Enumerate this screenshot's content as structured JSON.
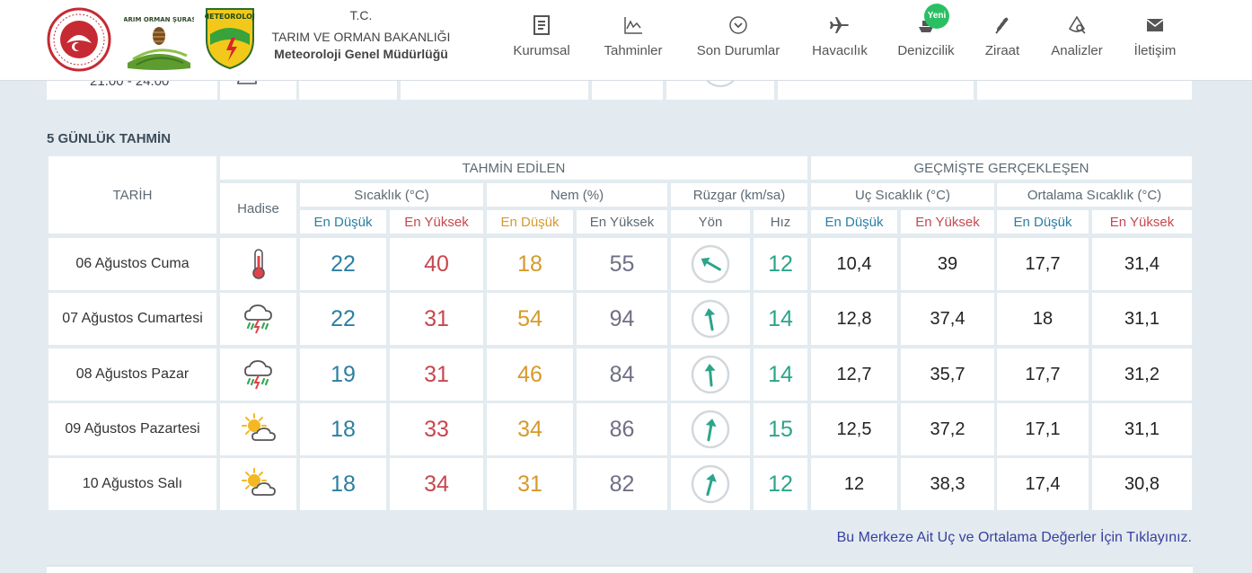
{
  "header": {
    "org_line1": "T.C.",
    "org_line2": "TARIM VE ORMAN BAKANLIĞI",
    "org_line3": "Meteoroloji Genel Müdürlüğü",
    "nav": [
      {
        "label": "Kurumsal",
        "icon": "document-icon"
      },
      {
        "label": "Tahminler",
        "icon": "chart-icon"
      },
      {
        "label": "Son Durumlar",
        "icon": "chevron-circle-icon"
      },
      {
        "label": "Havacılık",
        "icon": "airplane-icon"
      },
      {
        "label": "Denizcilik",
        "icon": "ship-icon",
        "badge": "Yeni"
      },
      {
        "label": "Ziraat",
        "icon": "wheat-icon"
      },
      {
        "label": "Analizler",
        "icon": "analysis-icon"
      },
      {
        "label": "İletişim",
        "icon": "mail-icon"
      }
    ]
  },
  "prev": {
    "time": "21.00 - 24.00"
  },
  "section_title": "5 GÜNLÜK TAHMİN",
  "table": {
    "h_date": "TARİH",
    "h_forecast": "TAHMİN EDİLEN",
    "h_past": "GEÇMİŞTE GERÇEKLEŞEN",
    "h_event": "Hadise",
    "h_temp": "Sıcaklık (°C)",
    "h_hum": "Nem (%)",
    "h_wind": "Rüzgar (km/sa)",
    "h_extreme": "Uç Sıcaklık (°C)",
    "h_avg": "Ortalama Sıcaklık (°C)",
    "h_low": "En Düşük",
    "h_high": "En Yüksek",
    "h_dir": "Yön",
    "h_speed": "Hız",
    "rows": [
      {
        "date": "06 Ağustos Cuma",
        "icon": "thermometer-icon",
        "tmin": "22",
        "tmax": "40",
        "hmin": "18",
        "hmax": "55",
        "wind_deg": 120,
        "speed": "12",
        "ext_min": "10,4",
        "ext_max": "39",
        "avg_min": "17,7",
        "avg_max": "31,4"
      },
      {
        "date": "07 Ağustos Cumartesi",
        "icon": "thunderstorm-icon",
        "tmin": "22",
        "tmax": "31",
        "hmin": "54",
        "hmax": "94",
        "wind_deg": 170,
        "speed": "14",
        "ext_min": "12,8",
        "ext_max": "37,4",
        "avg_min": "18",
        "avg_max": "31,1"
      },
      {
        "date": "08 Ağustos Pazar",
        "icon": "thunderstorm-icon",
        "tmin": "19",
        "tmax": "31",
        "hmin": "46",
        "hmax": "84",
        "wind_deg": 175,
        "speed": "14",
        "ext_min": "12,7",
        "ext_max": "35,7",
        "avg_min": "17,7",
        "avg_max": "31,2"
      },
      {
        "date": "09 Ağustos Pazartesi",
        "icon": "partly-cloudy-icon",
        "tmin": "18",
        "tmax": "33",
        "hmin": "34",
        "hmax": "86",
        "wind_deg": 190,
        "speed": "15",
        "ext_min": "12,5",
        "ext_max": "37,2",
        "avg_min": "17,1",
        "avg_max": "31,1"
      },
      {
        "date": "10 Ağustos Salı",
        "icon": "partly-cloudy-icon",
        "tmin": "18",
        "tmax": "34",
        "hmin": "31",
        "hmax": "82",
        "wind_deg": 195,
        "speed": "12",
        "ext_min": "12",
        "ext_max": "38,3",
        "avg_min": "17,4",
        "avg_max": "30,8"
      }
    ]
  },
  "footer_link": "Bu Merkeze Ait Uç ve Ortalama Değerler İçin Tıklayınız."
}
